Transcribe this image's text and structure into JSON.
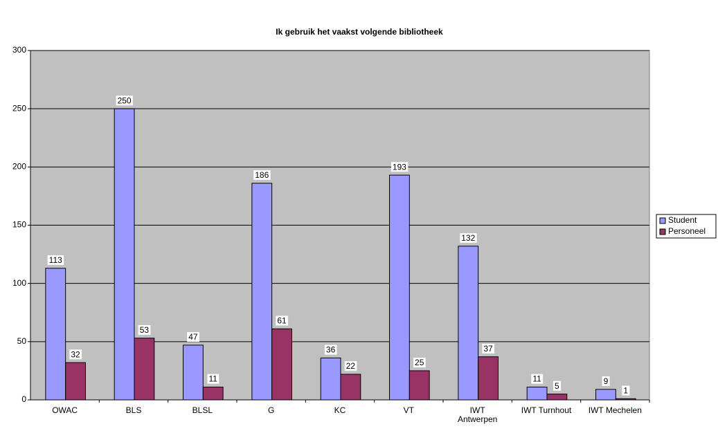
{
  "chart_data": {
    "type": "bar",
    "title": "Ik gebruik het vaakst volgende bibliotheek",
    "categories": [
      "OWAC",
      "BLS",
      "BLSL",
      "G",
      "KC",
      "VT",
      "IWT Antwerpen",
      "IWT Turnhout",
      "IWT Mechelen"
    ],
    "series": [
      {
        "name": "Student",
        "color": "#9999ff",
        "values": [
          113,
          250,
          47,
          186,
          36,
          193,
          132,
          11,
          9
        ]
      },
      {
        "name": "Personeel",
        "color": "#993366",
        "values": [
          32,
          53,
          11,
          61,
          22,
          25,
          37,
          5,
          1
        ]
      }
    ],
    "ylim": [
      0,
      300
    ],
    "yticks": [
      0,
      50,
      100,
      150,
      200,
      250,
      300
    ],
    "grid": true,
    "legend": "right"
  }
}
